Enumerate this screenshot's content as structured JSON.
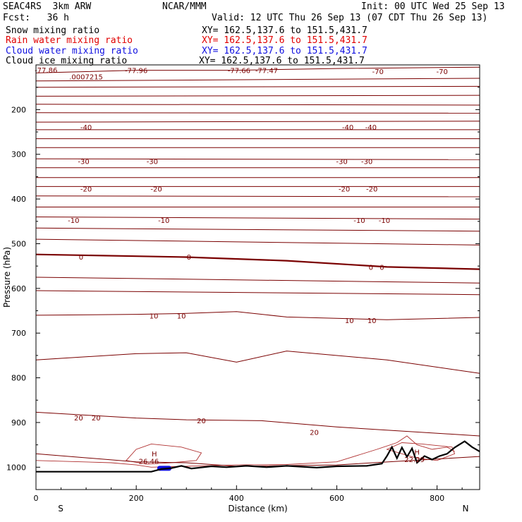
{
  "header": {
    "model": "SEAC4RS  3km ARW",
    "org": "NCAR/MMM",
    "init": "Init: 00 UTC Wed 25 Sep 13",
    "fcst": "Fcst:   36 h",
    "valid": "Valid: 12 UTC Thu 26 Sep 13 (07 CDT Thu 26 Sep 13)"
  },
  "legend": [
    {
      "label": "Snow mixing ratio",
      "xy": "XY= 162.5,137.6 to 151.5,431.7",
      "color": "#000000"
    },
    {
      "label": "Rain water mixing ratio",
      "xy": "XY= 162.5,137.6 to 151.5,431.7",
      "color": "#e00000"
    },
    {
      "label": "Cloud water mixing ratio",
      "xy": "XY= 162.5,137.6 to 151.5,431.7",
      "color": "#1010e0"
    },
    {
      "label": "Cloud ice mixing ratio",
      "xy": "XY= 162.5,137.6 to 151.5,431.7",
      "color": "#000000"
    }
  ],
  "chart_data": {
    "type": "line",
    "xlabel": "Distance (km)",
    "ylabel": "Pressure (hPa)",
    "xlim": [
      0,
      885
    ],
    "ylim": [
      1050,
      100
    ],
    "x_ticks": [
      0,
      200,
      400,
      600,
      800
    ],
    "y_ticks": [
      200,
      300,
      400,
      500,
      600,
      700,
      800,
      900,
      1000
    ],
    "y_tick_labels": [
      "200",
      "300",
      "400",
      "500",
      "600",
      "700",
      "800",
      "900",
      "1000"
    ],
    "corner_labels": {
      "left": "S",
      "right": "N"
    },
    "contour_color": "#7a0000",
    "zero_line_color": "#7a0000",
    "terrain_color": "#000000",
    "cloud_color": "#1010e0",
    "isotherms": [
      {
        "points": [
          [
            0,
            118
          ],
          [
            100,
            115
          ],
          [
            200,
            112
          ],
          [
            400,
            112
          ],
          [
            600,
            108
          ],
          [
            885,
            105
          ]
        ]
      },
      {
        "points": [
          [
            0,
            136
          ],
          [
            885,
            130
          ]
        ]
      },
      {
        "points": [
          [
            0,
            150
          ],
          [
            885,
            148
          ]
        ]
      },
      {
        "points": [
          [
            0,
            170
          ],
          [
            885,
            168
          ]
        ]
      },
      {
        "points": [
          [
            0,
            188
          ],
          [
            885,
            190
          ]
        ]
      },
      {
        "points": [
          [
            0,
            207
          ],
          [
            885,
            208
          ]
        ]
      },
      {
        "points": [
          [
            0,
            228
          ],
          [
            885,
            226
          ]
        ]
      },
      {
        "points": [
          [
            0,
            245
          ],
          [
            885,
            245
          ]
        ]
      },
      {
        "points": [
          [
            0,
            265
          ],
          [
            885,
            265
          ]
        ]
      },
      {
        "points": [
          [
            0,
            285
          ],
          [
            885,
            285
          ]
        ]
      },
      {
        "points": [
          [
            0,
            310
          ],
          [
            885,
            312
          ]
        ]
      },
      {
        "points": [
          [
            0,
            330
          ],
          [
            885,
            330
          ]
        ]
      },
      {
        "points": [
          [
            0,
            352
          ],
          [
            885,
            352
          ]
        ]
      },
      {
        "points": [
          [
            0,
            372
          ],
          [
            885,
            372
          ]
        ]
      },
      {
        "points": [
          [
            0,
            393
          ],
          [
            885,
            395
          ]
        ]
      },
      {
        "points": [
          [
            0,
            418
          ],
          [
            885,
            418
          ]
        ]
      },
      {
        "points": [
          [
            0,
            440
          ],
          [
            885,
            445
          ]
        ]
      },
      {
        "points": [
          [
            0,
            465
          ],
          [
            885,
            472
          ]
        ]
      },
      {
        "points": [
          [
            0,
            490
          ],
          [
            885,
            503
          ]
        ]
      },
      {
        "points": [
          [
            0,
            524
          ],
          [
            200,
            528
          ],
          [
            300,
            530
          ],
          [
            500,
            538
          ],
          [
            700,
            552
          ],
          [
            885,
            557
          ]
        ],
        "bold": true
      },
      {
        "points": [
          [
            0,
            575
          ],
          [
            885,
            588
          ]
        ]
      },
      {
        "points": [
          [
            0,
            605
          ],
          [
            885,
            614
          ]
        ]
      },
      {
        "points": [
          [
            0,
            660
          ],
          [
            200,
            658
          ],
          [
            300,
            656
          ],
          [
            400,
            652
          ],
          [
            500,
            664
          ],
          [
            700,
            670
          ],
          [
            885,
            665
          ]
        ]
      },
      {
        "points": [
          [
            0,
            760
          ],
          [
            200,
            746
          ],
          [
            300,
            744
          ],
          [
            400,
            765
          ],
          [
            500,
            740
          ],
          [
            700,
            760
          ],
          [
            885,
            790
          ]
        ]
      },
      {
        "points": [
          [
            0,
            877
          ],
          [
            200,
            890
          ],
          [
            300,
            894
          ],
          [
            450,
            896
          ],
          [
            600,
            910
          ],
          [
            885,
            930
          ]
        ]
      },
      {
        "points": [
          [
            0,
            970
          ],
          [
            200,
            988
          ],
          [
            300,
            990
          ],
          [
            400,
            998
          ],
          [
            600,
            995
          ],
          [
            885,
            976
          ]
        ]
      }
    ],
    "contour_labels": [
      {
        "text": "-77.86",
        "x": 20,
        "p": 112
      },
      {
        "text": "-77.96",
        "x": 200,
        "p": 113
      },
      {
        "text": "-77.66",
        "x": 405,
        "p": 113
      },
      {
        "text": "-77.47",
        "x": 460,
        "p": 113
      },
      {
        "text": "-70",
        "x": 682,
        "p": 115
      },
      {
        "text": "-70",
        "x": 810,
        "p": 115
      },
      {
        "text": "-40",
        "x": 100,
        "p": 240
      },
      {
        "text": "-40",
        "x": 622,
        "p": 240
      },
      {
        "text": "-40",
        "x": 668,
        "p": 240
      },
      {
        "text": "-30",
        "x": 95,
        "p": 316
      },
      {
        "text": "-30",
        "x": 232,
        "p": 316
      },
      {
        "text": "-30",
        "x": 610,
        "p": 316
      },
      {
        "text": "-30",
        "x": 660,
        "p": 316
      },
      {
        "text": "-20",
        "x": 100,
        "p": 378
      },
      {
        "text": "-20",
        "x": 240,
        "p": 378
      },
      {
        "text": "-20",
        "x": 615,
        "p": 378
      },
      {
        "text": "-20",
        "x": 670,
        "p": 378
      },
      {
        "text": "-10",
        "x": 75,
        "p": 448
      },
      {
        "text": "-10",
        "x": 255,
        "p": 448
      },
      {
        "text": "-10",
        "x": 645,
        "p": 448
      },
      {
        "text": "-10",
        "x": 695,
        "p": 448
      },
      {
        "text": "0",
        "x": 90,
        "p": 530
      },
      {
        "text": "0",
        "x": 305,
        "p": 530
      },
      {
        "text": "0",
        "x": 668,
        "p": 553
      },
      {
        "text": "0",
        "x": 690,
        "p": 553
      },
      {
        "text": "10",
        "x": 235,
        "p": 662
      },
      {
        "text": "10",
        "x": 290,
        "p": 662
      },
      {
        "text": "10",
        "x": 625,
        "p": 672
      },
      {
        "text": "10",
        "x": 670,
        "p": 672
      },
      {
        "text": "20",
        "x": 85,
        "p": 890
      },
      {
        "text": "20",
        "x": 120,
        "p": 890
      },
      {
        "text": "20",
        "x": 330,
        "p": 896
      },
      {
        "text": "20",
        "x": 555,
        "p": 922
      }
    ],
    "annotations": [
      {
        "text": ".0007215",
        "x": 100,
        "p": 127,
        "color": "#000000"
      },
      {
        "text": "H",
        "x": 236,
        "p": 970,
        "color": "#7a0000"
      },
      {
        "text": "26.46",
        "x": 225,
        "p": 987,
        "color": "#000000"
      },
      {
        "text": "H",
        "x": 760,
        "p": 966,
        "color": "#7a0000"
      },
      {
        "text": "22.29",
        "x": 755,
        "p": 983,
        "color": "#000000"
      }
    ],
    "terrain": [
      [
        0,
        1010
      ],
      [
        230,
        1010
      ],
      [
        250,
        1004
      ],
      [
        270,
        1002
      ],
      [
        290,
        997
      ],
      [
        310,
        1003
      ],
      [
        350,
        998
      ],
      [
        380,
        1000
      ],
      [
        420,
        997
      ],
      [
        460,
        1000
      ],
      [
        500,
        997
      ],
      [
        560,
        1001
      ],
      [
        600,
        998
      ],
      [
        660,
        997
      ],
      [
        690,
        992
      ],
      [
        700,
        975
      ],
      [
        710,
        955
      ],
      [
        720,
        980
      ],
      [
        730,
        956
      ],
      [
        740,
        977
      ],
      [
        750,
        958
      ],
      [
        760,
        990
      ],
      [
        775,
        975
      ],
      [
        790,
        983
      ],
      [
        805,
        975
      ],
      [
        820,
        970
      ],
      [
        835,
        956
      ],
      [
        855,
        942
      ],
      [
        870,
        955
      ],
      [
        885,
        965
      ]
    ],
    "rain_contours": [
      {
        "points": [
          [
            0,
            985
          ],
          [
            150,
            990
          ],
          [
            200,
            995
          ],
          [
            230,
            1000
          ],
          [
            300,
            998
          ],
          [
            400,
            995
          ],
          [
            500,
            994
          ],
          [
            600,
            988
          ],
          [
            680,
            960
          ],
          [
            720,
            945
          ],
          [
            740,
            930
          ],
          [
            760,
            950
          ],
          [
            790,
            960
          ],
          [
            820,
            955
          ],
          [
            835,
            965
          ]
        ],
        "closed": false
      },
      {
        "points": [
          [
            180,
            985
          ],
          [
            200,
            960
          ],
          [
            230,
            948
          ],
          [
            290,
            955
          ],
          [
            330,
            968
          ],
          [
            320,
            985
          ],
          [
            270,
            990
          ],
          [
            220,
            993
          ]
        ],
        "closed": true
      },
      {
        "points": [
          [
            700,
            960
          ],
          [
            730,
            945
          ],
          [
            770,
            948
          ],
          [
            830,
            955
          ],
          [
            835,
            970
          ],
          [
            800,
            985
          ],
          [
            760,
            980
          ]
        ],
        "closed": true
      }
    ],
    "cloud_blobs": [
      {
        "x0": 242,
        "x1": 270,
        "p0": 997,
        "p1": 1008
      }
    ]
  }
}
